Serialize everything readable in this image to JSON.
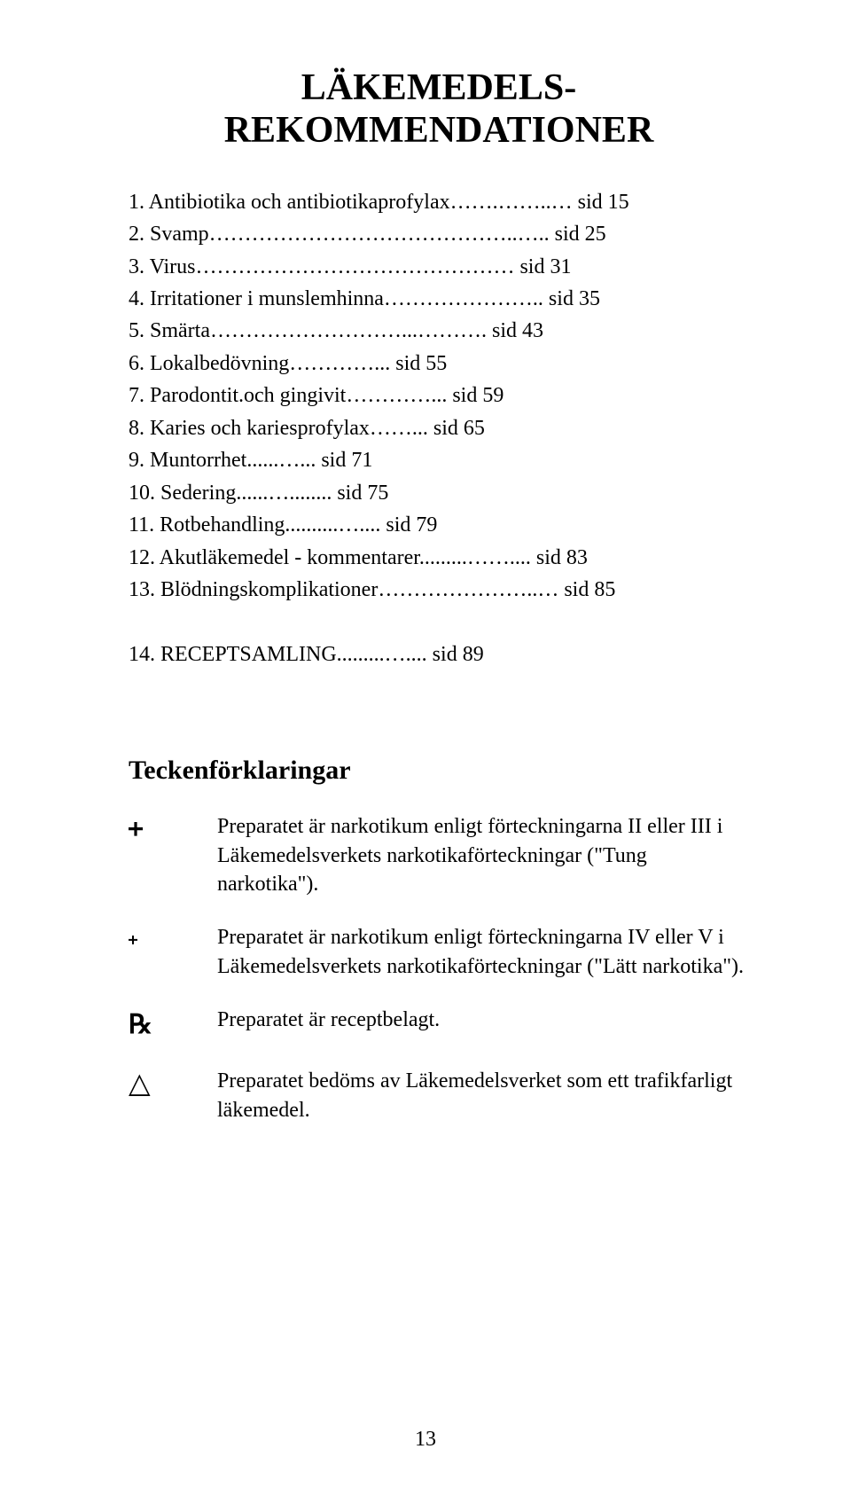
{
  "title_line1": "LÄKEMEDELS-",
  "title_line2": "REKOMMENDATIONER",
  "toc": [
    {
      "label": "1. Antibiotika och antibiotikaprofylax…….……..… sid 15"
    },
    {
      "label": "2. Svamp……………………………………..….. sid 25"
    },
    {
      "label": "3. Virus……………………………………… sid 31"
    },
    {
      "label": "4. Irritationer i munslemhinna………………….. sid 35"
    },
    {
      "label": "5. Smärta………………………...………. sid 43"
    },
    {
      "label": "6. Lokalbedövning…………... sid 55"
    },
    {
      "label": "7. Parodontit.och gingivit…………... sid 59"
    },
    {
      "label": "8. Karies och kariesprofylax……... sid 65"
    },
    {
      "label": "9. Muntorrhet......…... sid 71"
    },
    {
      "label": "10. Sedering......…........ sid 75"
    },
    {
      "label": "11. Rotbehandling..........….... sid 79"
    },
    {
      "label": "12. Akutläkemedel - kommentarer.........…….... sid 83"
    },
    {
      "label": "13. Blödningskomplikationer…………………..… sid 85"
    }
  ],
  "toc_14": "14. RECEPTSAMLING.........….... sid 89",
  "legend_heading": "Teckenförklaringar",
  "legend": [
    {
      "symbol_type": "cross-large",
      "text": "Preparatet är narkotikum enligt förteckningarna II eller III i Läkemedelsverkets narkotikaförteckningar (\"Tung narkotika\")."
    },
    {
      "symbol_type": "cross-small",
      "text": "Preparatet är narkotikum enligt förteckningarna IV eller V i Läkemedelsverkets narkotikaförteckningar (\"Lätt narkotika\")."
    },
    {
      "symbol_type": "rx",
      "text": "Preparatet är receptbelagt."
    },
    {
      "symbol_type": "triangle",
      "text": "Preparatet bedöms av Läkemedelsverket som ett trafikfarligt läkemedel."
    }
  ],
  "page_number": "13",
  "colors": {
    "background": "#ffffff",
    "text": "#000000"
  },
  "typography": {
    "title_fontsize": 42,
    "body_fontsize": 24,
    "heading_fontsize": 30,
    "font_family": "Times New Roman"
  }
}
